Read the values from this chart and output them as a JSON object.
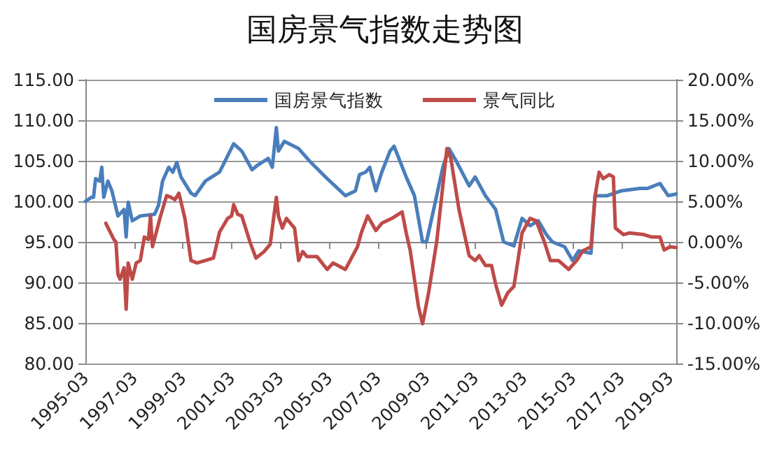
{
  "chart_data": {
    "type": "line",
    "title": "国房景气指数走势图",
    "xlim": [
      "1995-03",
      "2019-06"
    ],
    "xticks": [
      "1995-03",
      "1997-03",
      "1999-03",
      "2001-03",
      "2003-03",
      "2005-03",
      "2007-03",
      "2009-03",
      "2011-03",
      "2013-03",
      "2015-03",
      "2017-03",
      "2019-03"
    ],
    "ylim": [
      80,
      115
    ],
    "yticks": [
      {
        "value": 80,
        "label": "80.00"
      },
      {
        "value": 85,
        "label": "85.00"
      },
      {
        "value": 90,
        "label": "90.00"
      },
      {
        "value": 95,
        "label": "95.00"
      },
      {
        "value": 100,
        "label": "100.00"
      },
      {
        "value": 105,
        "label": "105.00"
      },
      {
        "value": 110,
        "label": "110.00"
      },
      {
        "value": 115,
        "label": "115.00"
      }
    ],
    "y2lim": [
      -15,
      20
    ],
    "y2ticks": [
      {
        "value": -15,
        "label": "-15.00%"
      },
      {
        "value": -10,
        "label": "-10.00%"
      },
      {
        "value": -5,
        "label": "-5.00%"
      },
      {
        "value": 0,
        "label": "0.00%"
      },
      {
        "value": 5,
        "label": "5.00%"
      },
      {
        "value": 10,
        "label": "10.00%"
      },
      {
        "value": 15,
        "label": "15.00%"
      },
      {
        "value": 20,
        "label": "20.00%"
      }
    ],
    "grid": "y",
    "legend": "top",
    "marker": "none",
    "line_style": "solid",
    "series": [
      {
        "name": "国房景气指数",
        "color": "#4a7ebb",
        "x": [
          "1995-03",
          "1995-06",
          "1995-07",
          "1995-08",
          "1995-10",
          "1995-11",
          "1995-12",
          "1996-02",
          "1996-04",
          "1996-07",
          "1996-10",
          "1996-11",
          "1996-12",
          "1997-02",
          "1997-06",
          "1998-01",
          "1998-03",
          "1998-05",
          "1998-08",
          "1998-10",
          "1998-12",
          "1999-02",
          "1999-07",
          "1999-09",
          "2000-02",
          "2000-09",
          "2001-04",
          "2001-08",
          "2002-01",
          "2002-04",
          "2002-09",
          "2002-11",
          "2003-01",
          "2003-02",
          "2003-05",
          "2003-12",
          "2004-06",
          "2005-02",
          "2005-11",
          "2006-04",
          "2006-06",
          "2006-09",
          "2006-11",
          "2007-02",
          "2007-05",
          "2007-09",
          "2007-11",
          "2008-05",
          "2008-09",
          "2009-01",
          "2009-03",
          "2009-06",
          "2009-11",
          "2010-02",
          "2010-06",
          "2010-12",
          "2011-03",
          "2011-08",
          "2012-01",
          "2012-05",
          "2012-10",
          "2013-02",
          "2013-06",
          "2013-10",
          "2014-02",
          "2014-05",
          "2014-11",
          "2015-03",
          "2015-06",
          "2015-12",
          "2016-02",
          "2016-08",
          "2017-03",
          "2017-12",
          "2018-04",
          "2018-10",
          "2019-02",
          "2019-06"
        ],
        "values": [
          100.0,
          100.5,
          100.5,
          102.8,
          102.5,
          104.2,
          100.5,
          102.5,
          101.3,
          98.2,
          99.0,
          95.6,
          99.9,
          97.6,
          98.2,
          98.4,
          99.5,
          102.5,
          104.2,
          103.6,
          104.8,
          103.0,
          101.0,
          100.7,
          102.5,
          103.6,
          107.1,
          106.2,
          103.9,
          104.5,
          105.3,
          104.2,
          109.1,
          106.2,
          107.4,
          106.5,
          104.8,
          102.8,
          100.7,
          101.3,
          103.3,
          103.6,
          104.2,
          101.3,
          103.6,
          106.2,
          106.8,
          103.0,
          100.7,
          95.0,
          95.0,
          98.4,
          104.2,
          106.5,
          104.8,
          101.9,
          103.0,
          100.7,
          99.0,
          95.0,
          94.5,
          97.9,
          97.0,
          97.6,
          95.9,
          95.0,
          94.4,
          92.7,
          93.9,
          93.6,
          100.7,
          100.7,
          101.3,
          101.6,
          101.6,
          102.2,
          100.7,
          100.9
        ]
      },
      {
        "name": "景气同比",
        "color": "#be4b48",
        "axis": "y2",
        "x": [
          "1996-01",
          "1996-05",
          "1996-06",
          "1996-07",
          "1996-08",
          "1996-10",
          "1996-11",
          "1996-12",
          "1997-02",
          "1997-04",
          "1997-06",
          "1997-08",
          "1997-10",
          "1997-11",
          "1997-12",
          "1998-04",
          "1998-07",
          "1998-09",
          "1998-11",
          "1999-01",
          "1999-04",
          "1999-07",
          "1999-10",
          "2000-02",
          "2000-06",
          "2000-09",
          "2001-01",
          "2001-03",
          "2001-04",
          "2001-06",
          "2001-08",
          "2001-12",
          "2002-03",
          "2002-07",
          "2002-10",
          "2003-01",
          "2003-02",
          "2003-04",
          "2003-06",
          "2003-10",
          "2003-12",
          "2004-02",
          "2004-04",
          "2004-09",
          "2005-02",
          "2005-05",
          "2005-11",
          "2006-05",
          "2006-07",
          "2006-10",
          "2007-02",
          "2007-05",
          "2007-10",
          "2008-03",
          "2008-05",
          "2008-07",
          "2008-09",
          "2008-11",
          "2009-01",
          "2009-04",
          "2009-08",
          "2009-11",
          "2010-01",
          "2010-03",
          "2010-07",
          "2010-12",
          "2011-03",
          "2011-05",
          "2011-08",
          "2011-11",
          "2012-01",
          "2012-04",
          "2012-07",
          "2012-10",
          "2012-12",
          "2013-02",
          "2013-06",
          "2013-09",
          "2014-01",
          "2014-04",
          "2014-08",
          "2015-01",
          "2015-05",
          "2015-08",
          "2015-12",
          "2016-02",
          "2016-04",
          "2016-06",
          "2016-09",
          "2016-11",
          "2016-12",
          "2017-04",
          "2017-07",
          "2018-02",
          "2018-06",
          "2018-10",
          "2018-12",
          "2019-03",
          "2019-06"
        ],
        "values": [
          2.3,
          0.3,
          0.0,
          -4.0,
          -4.6,
          -3.2,
          -8.3,
          -2.6,
          -4.6,
          -2.6,
          -2.3,
          0.6,
          0.3,
          3.2,
          -0.6,
          3.2,
          5.7,
          5.5,
          5.2,
          6.0,
          2.9,
          -2.3,
          -2.6,
          -2.3,
          -2.0,
          1.2,
          2.9,
          3.2,
          4.6,
          3.4,
          3.2,
          0.0,
          -2.0,
          -1.2,
          -0.3,
          5.5,
          3.2,
          1.7,
          2.9,
          1.7,
          -2.3,
          -1.2,
          -1.8,
          -1.8,
          -3.4,
          -2.6,
          -3.4,
          -0.6,
          1.2,
          3.2,
          1.4,
          2.3,
          2.9,
          3.7,
          1.1,
          -1.1,
          -4.6,
          -8.0,
          -10.1,
          -6.3,
          0.0,
          6.9,
          11.5,
          10.3,
          4.0,
          -1.7,
          -2.3,
          -1.7,
          -2.9,
          -2.9,
          -5.2,
          -7.8,
          -6.3,
          -5.5,
          -2.3,
          1.1,
          2.9,
          2.6,
          0.0,
          -2.3,
          -2.3,
          -3.4,
          -2.3,
          -1.1,
          -0.6,
          5.7,
          8.6,
          7.8,
          8.3,
          8.0,
          1.7,
          0.9,
          1.1,
          0.9,
          0.6,
          0.6,
          -1.0,
          -0.6,
          -0.7
        ]
      }
    ]
  }
}
